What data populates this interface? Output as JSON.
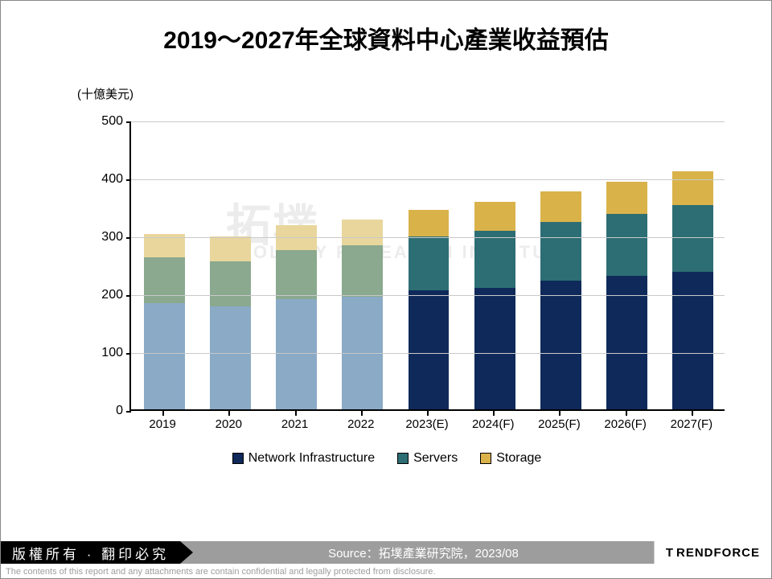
{
  "title": "2019～2027年全球資料中心產業收益預估",
  "y_axis_label": "(十億美元)",
  "watermark_cjk": "拓墣",
  "watermark_en": "TOPOLOGY RESEARCH INSTITUTE",
  "chart": {
    "type": "stacked-bar",
    "categories": [
      "2019",
      "2020",
      "2021",
      "2022",
      "2023(E)",
      "2024(F)",
      "2025(F)",
      "2026(F)",
      "2027(F)"
    ],
    "series": [
      {
        "name": "Network Infrastructure",
        "color": "#0f2a5a",
        "alt_color": "#8aaac6",
        "values": [
          183,
          178,
          190,
          195,
          205,
          210,
          222,
          230,
          238
        ],
        "faded": [
          true,
          true,
          true,
          true,
          false,
          false,
          false,
          false,
          false
        ]
      },
      {
        "name": "Servers",
        "color": "#2d6e74",
        "alt_color": "#8aa98f",
        "values": [
          80,
          78,
          85,
          88,
          93,
          98,
          102,
          108,
          115
        ],
        "faded": [
          true,
          true,
          true,
          true,
          false,
          false,
          false,
          false,
          false
        ]
      },
      {
        "name": "Storage",
        "color": "#d9b24a",
        "alt_color": "#e9d69c",
        "values": [
          40,
          42,
          43,
          45,
          46,
          50,
          52,
          55,
          58
        ],
        "faded": [
          true,
          true,
          true,
          true,
          false,
          false,
          false,
          false,
          false
        ]
      }
    ],
    "ylim": [
      0,
      500
    ],
    "yticks": [
      0,
      100,
      200,
      300,
      400,
      500
    ],
    "grid_color": "#c9c9c9",
    "background_color": "#ffffff",
    "bar_width": 0.62,
    "title_fontsize": 30,
    "label_fontsize": 15,
    "tick_fontsize": 16,
    "legend_fontsize": 16
  },
  "legend_items": [
    {
      "label": "Network Infrastructure",
      "color": "#0f2a5a"
    },
    {
      "label": "Servers",
      "color": "#2d6e74"
    },
    {
      "label": "Storage",
      "color": "#d9b24a"
    }
  ],
  "footer": {
    "copyright": "版權所有 · 翻印必究",
    "source": "Source：拓墣產業研究院，2023/08",
    "brand_prefix": "T",
    "brand": "RENDFORCE"
  },
  "disclaimer": "The contents of this report and any attachments are contain confidential and legally protected from disclosure."
}
